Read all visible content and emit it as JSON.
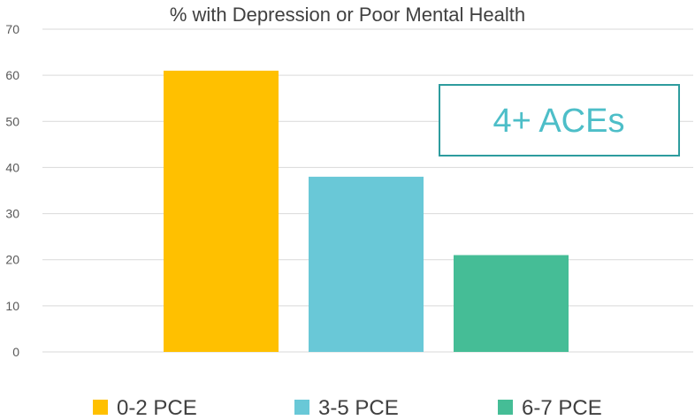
{
  "chart_data": {
    "type": "bar",
    "title": "% with Depression or Poor Mental Health",
    "xlabel": "",
    "ylabel": "",
    "ylim": [
      0,
      70
    ],
    "yticks": [
      0,
      10,
      20,
      30,
      40,
      50,
      60,
      70
    ],
    "grid": true,
    "legend_position": "bottom",
    "series": [
      {
        "name": "0-2 PCE",
        "value": 61,
        "color": "#FFC000"
      },
      {
        "name": "3-5 PCE",
        "value": 38,
        "color": "#69C8D7"
      },
      {
        "name": "6-7 PCE",
        "value": 21,
        "color": "#45BD96"
      }
    ],
    "annotation": {
      "text": "4+ ACEs",
      "color": "#4DBEC8",
      "border_color": "#2E9C9E"
    }
  }
}
